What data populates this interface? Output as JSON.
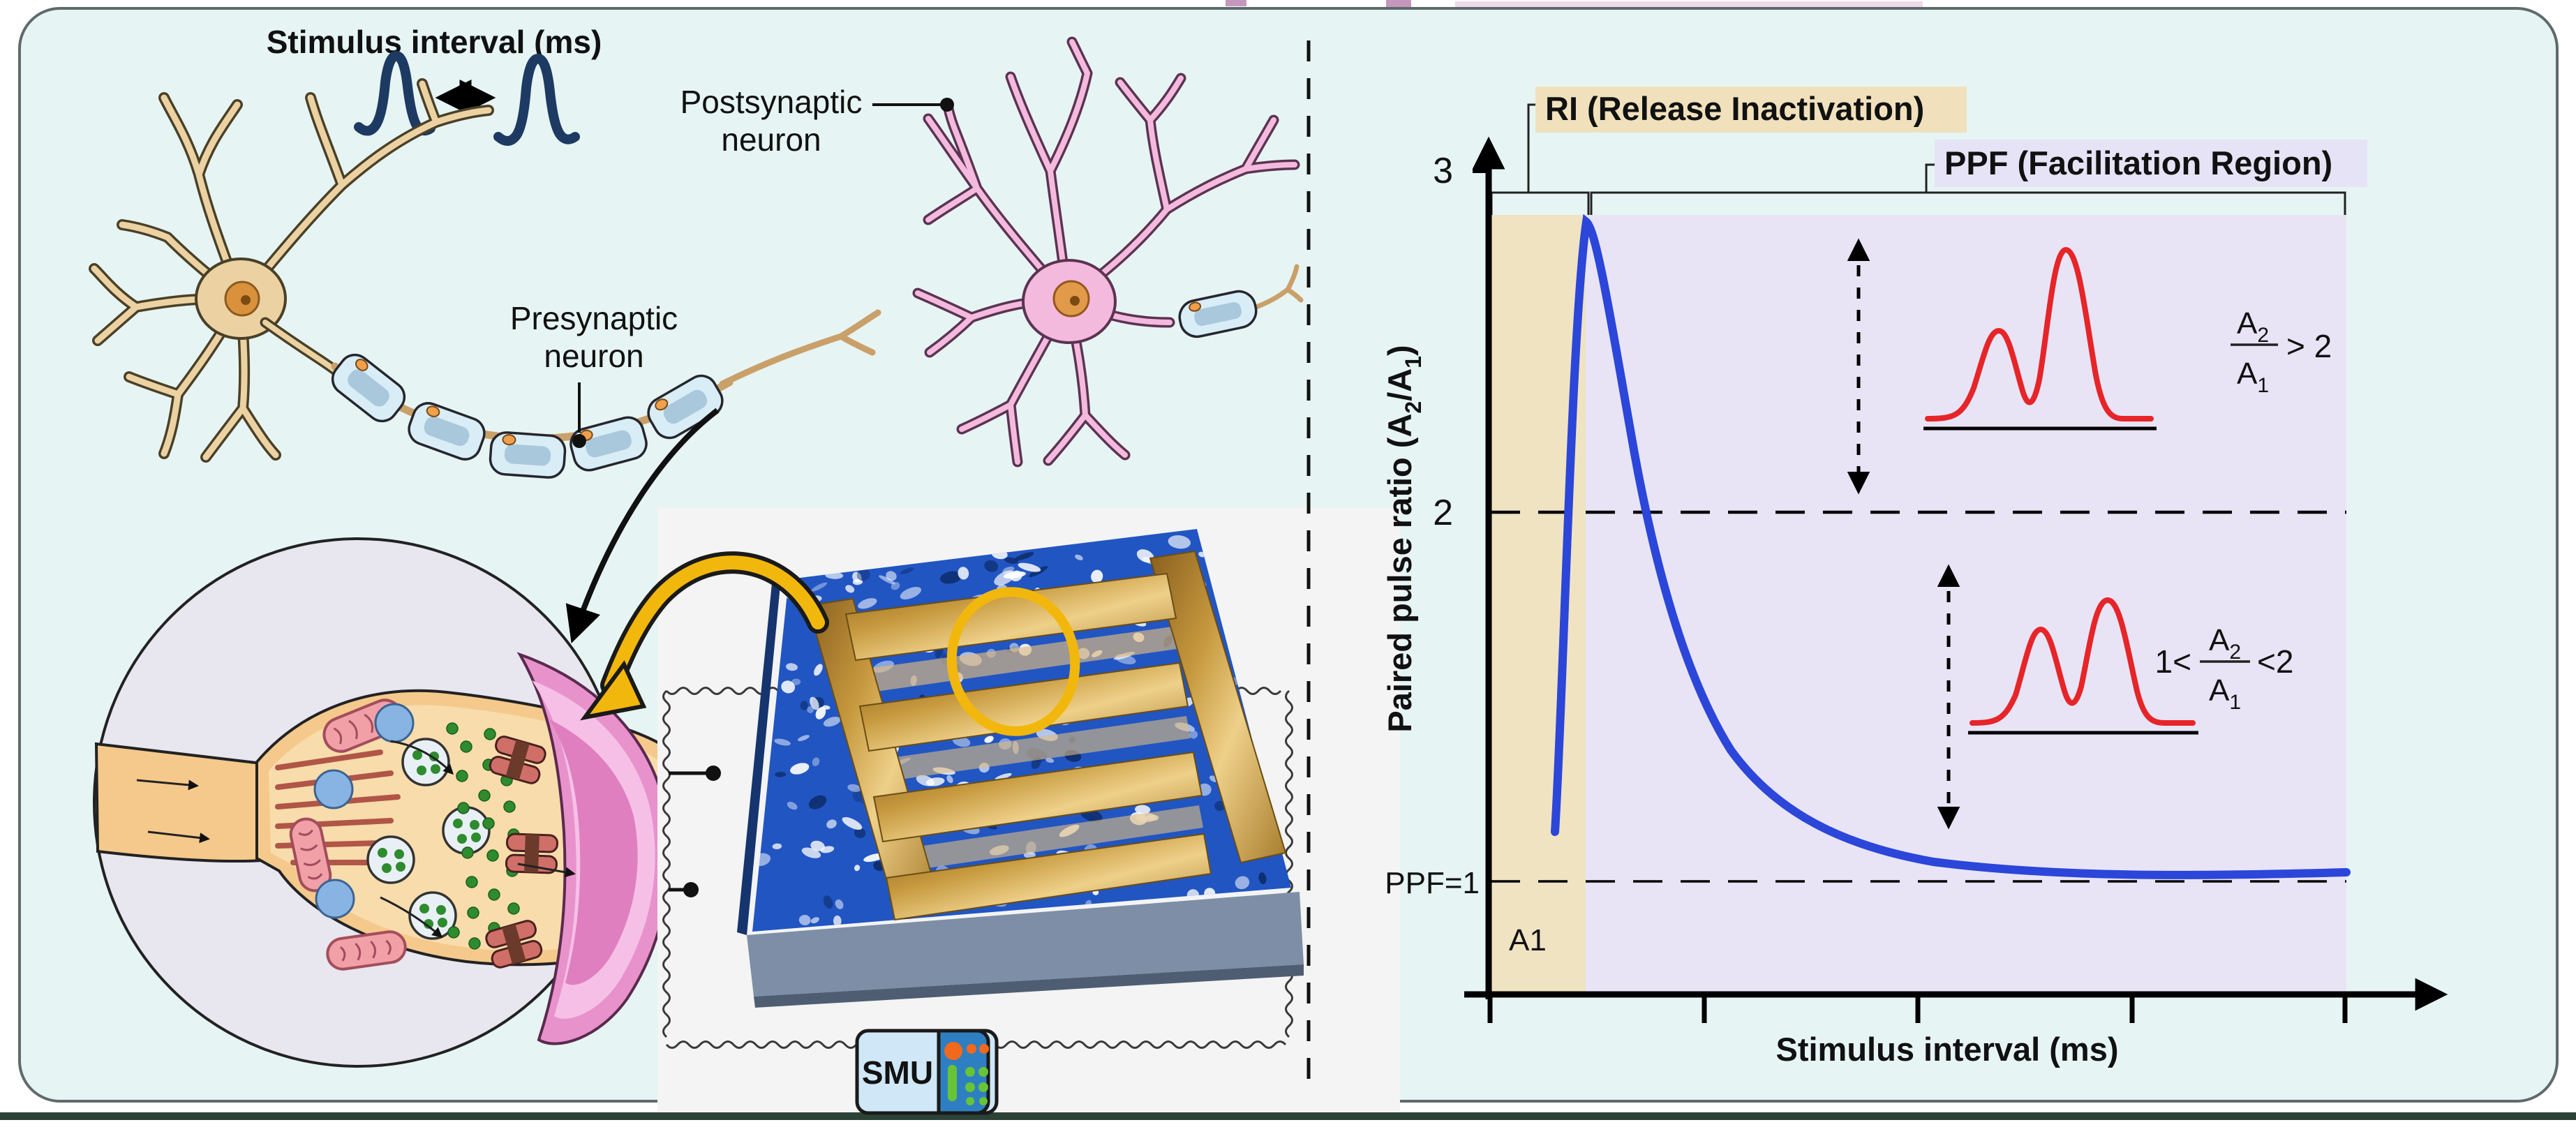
{
  "figure": {
    "kind": "synaptic-plasticity-device schematic figure",
    "panel_bg": "#e6f5f3",
    "bottom_rule_color": "#2c4237"
  },
  "left": {
    "title": "Stimulus interval (ms)",
    "postsynaptic_label_line1": "Postsynaptic",
    "postsynaptic_label_line2": "neuron",
    "presynaptic_label_line1": "Presynaptic",
    "presynaptic_label_line2": "neuron",
    "smu_label": "SMU",
    "icons": [
      "action-potential-spike",
      "double-headed-arrow",
      "presynaptic-neuron",
      "postsynaptic-neuron",
      "myelinated-axon",
      "synapse-zoom-circle",
      "memristor-chip",
      "smu-instrument",
      "coiled-wire",
      "magnify-arrow",
      "device-analogy-arrow",
      "highlight-ellipse"
    ]
  },
  "plot": {
    "ri_region_label": "RI (Release Inactivation)",
    "ppf_region_label": "PPF (Facilitation Region)",
    "xlabel": "Stimulus interval (ms)",
    "ylabel": {
      "pre": "Paired pulse ratio (A",
      "sub2": "2",
      "mid": "/A",
      "sub1": "1",
      "post": ")"
    },
    "ytick_3": "3",
    "ytick_2": "2",
    "ytick_1": "PPF=1",
    "a1_label": "A1",
    "formula_top": {
      "num_base": "A",
      "num_sub": "2",
      "den_base": "A",
      "den_sub": "1",
      "relation": "> 2"
    },
    "formula_bottom": {
      "prefix": "1<",
      "num_base": "A",
      "num_sub": "2",
      "den_base": "A",
      "den_sub": "1",
      "relation": "<2"
    },
    "colors": {
      "curve_blue": "#2b46d9",
      "ri_fill": "#f0e3c1",
      "ppf_fill": "#e8e4f6",
      "ri_label_bg": "#f0e1bc",
      "ppf_label_bg": "#e7e3f6",
      "pulse_red": "#e62529",
      "accent_gold": "#f2b70d",
      "spike_navy": "#1d3a63"
    }
  },
  "chart_data": {
    "type": "line",
    "title": "",
    "xlabel": "Stimulus interval (ms)",
    "ylabel": "Paired pulse ratio (A2/A1)",
    "ylim": [
      0.8,
      3
    ],
    "yticks": [
      1,
      2,
      3
    ],
    "ytick_labels": [
      "PPF=1",
      "2",
      "3"
    ],
    "x_axis": "schematic (no numeric ticks, 5 unlabeled tick marks)",
    "grid": false,
    "regions": [
      {
        "label": "RI (Release Inactivation)",
        "x_frac_range": [
          0.0,
          0.11
        ],
        "fill": "#f0e3c1"
      },
      {
        "label": "PPF (Facilitation Region)",
        "x_frac_range": [
          0.11,
          1.0
        ],
        "fill": "#e8e4f6"
      }
    ],
    "series": [
      {
        "name": "Paired pulse ratio vs stimulus interval",
        "color": "#2b46d9",
        "x_frac": [
          0.075,
          0.09,
          0.11,
          0.15,
          0.21,
          0.28,
          0.38,
          0.5,
          0.65,
          0.8,
          1.0
        ],
        "y": [
          1.14,
          2.0,
          2.79,
          2.3,
          1.8,
          1.48,
          1.25,
          1.12,
          1.06,
          1.04,
          1.03
        ]
      }
    ],
    "reference_lines": [
      {
        "y": 2,
        "style": "dashed"
      },
      {
        "y": 1,
        "style": "dashed",
        "label": "PPF=1"
      }
    ],
    "annotations": [
      "A2/A1 > 2 (between curve peak and y=2)",
      "1 < A2/A1 < 2 (between y=2 and curve tail)",
      "A1 (start region)"
    ]
  }
}
